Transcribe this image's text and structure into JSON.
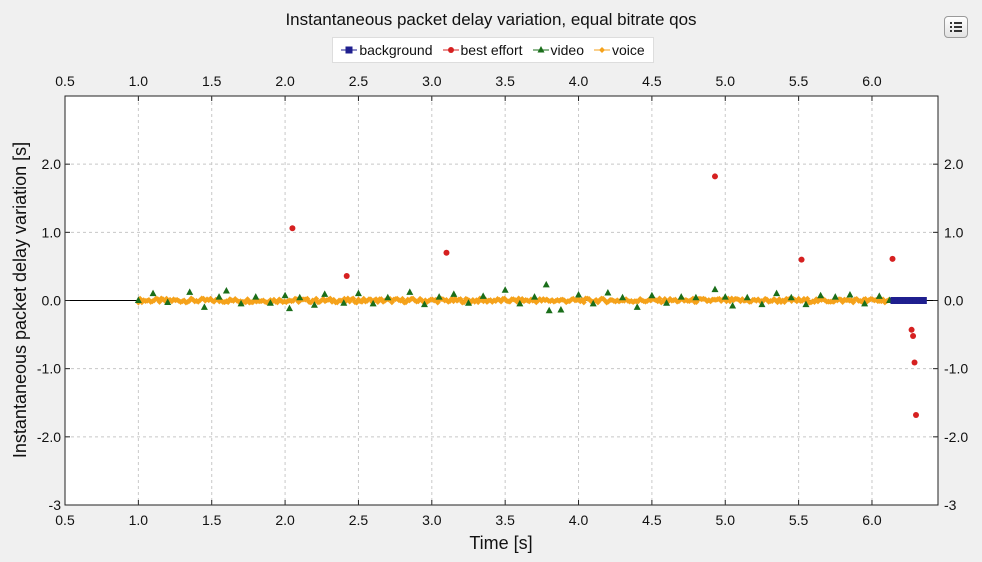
{
  "header": {
    "title": "Instantaneous packet delay variation, equal bitrate qos"
  },
  "toolbar": {
    "menu_icon": "list-icon"
  },
  "chart_data": {
    "type": "scatter",
    "title": "Instantaneous packet delay variation, equal bitrate qos",
    "xlabel": "Time [s]",
    "ylabel": "Instantaneous packet delay variation [s]",
    "xlim": [
      0.5,
      6.45
    ],
    "ylim": [
      -3.0,
      3.0
    ],
    "xticks": [
      0.5,
      1.0,
      1.5,
      2.0,
      2.5,
      3.0,
      3.5,
      4.0,
      4.5,
      5.0,
      5.5,
      6.0
    ],
    "xtick_labels": [
      "0.5",
      "1.0",
      "1.5",
      "2.0",
      "2.5",
      "3.0",
      "3.5",
      "4.0",
      "4.5",
      "5.0",
      "5.5",
      "6.0"
    ],
    "yticks": [
      -3,
      -2,
      -1,
      0,
      1,
      2
    ],
    "ytick_labels": [
      "-3",
      "-2.0",
      "-1.0",
      "0.0",
      "1.0",
      "2.0"
    ],
    "grid": true,
    "legend_position": "top-center",
    "series": [
      {
        "name": "background",
        "color": "#1f1f8f",
        "marker": "square",
        "x": [
          6.15,
          6.18,
          6.2,
          6.23,
          6.25,
          6.28,
          6.3,
          6.33,
          6.35
        ],
        "y": [
          0.0,
          0.0,
          0.0,
          0.0,
          0.0,
          0.0,
          0.0,
          0.0,
          0.0
        ]
      },
      {
        "name": "best effort",
        "color": "#d62020",
        "marker": "circle",
        "x": [
          2.05,
          2.42,
          3.1,
          4.93,
          5.52,
          6.14,
          6.17,
          6.2,
          6.22,
          6.25,
          6.27,
          6.28,
          6.29,
          6.3
        ],
        "y": [
          1.06,
          0.36,
          0.7,
          1.82,
          0.6,
          0.61,
          0.0,
          0.0,
          0.0,
          0.0,
          -0.43,
          -0.52,
          -0.91,
          -1.68
        ]
      },
      {
        "name": "video",
        "color": "#1a6e1a",
        "marker": "triangle",
        "x": [
          1.0,
          1.1,
          1.2,
          1.35,
          1.45,
          1.55,
          1.6,
          1.7,
          1.8,
          1.9,
          2.0,
          2.03,
          2.1,
          2.2,
          2.27,
          2.4,
          2.5,
          2.6,
          2.7,
          2.85,
          2.95,
          3.05,
          3.15,
          3.25,
          3.35,
          3.5,
          3.6,
          3.7,
          3.78,
          3.8,
          3.88,
          4.0,
          4.1,
          4.2,
          4.3,
          4.4,
          4.5,
          4.6,
          4.7,
          4.8,
          4.93,
          5.0,
          5.05,
          5.15,
          5.25,
          5.35,
          5.45,
          5.55,
          5.65,
          5.75,
          5.85,
          5.95,
          6.05,
          6.12
        ],
        "y": [
          0.0,
          0.1,
          -0.03,
          0.12,
          -0.1,
          0.05,
          0.14,
          -0.05,
          0.05,
          -0.04,
          0.07,
          -0.12,
          0.04,
          -0.07,
          0.09,
          -0.04,
          0.1,
          -0.05,
          0.04,
          0.12,
          -0.06,
          0.05,
          0.09,
          -0.04,
          0.06,
          0.15,
          -0.05,
          0.05,
          0.23,
          -0.15,
          -0.14,
          0.08,
          -0.05,
          0.11,
          0.04,
          -0.1,
          0.07,
          -0.04,
          0.05,
          0.04,
          0.16,
          0.05,
          -0.08,
          0.04,
          -0.06,
          0.1,
          0.04,
          -0.06,
          0.07,
          0.05,
          0.08,
          -0.05,
          0.06,
          0.0
        ]
      },
      {
        "name": "voice",
        "color": "#f5a21b",
        "marker": "diamond",
        "x_start": 1.0,
        "x_end": 6.12,
        "x_step": 0.012,
        "y_band": [
          -0.03,
          0.03
        ]
      }
    ]
  }
}
